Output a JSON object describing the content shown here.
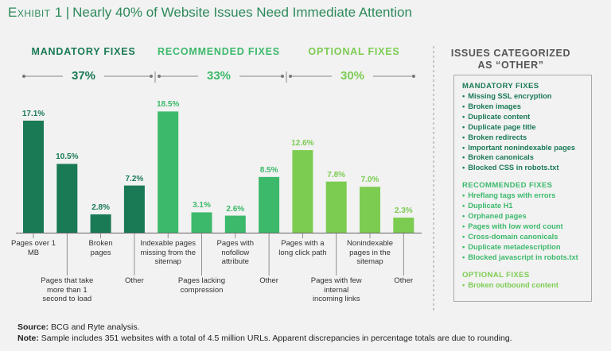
{
  "title": {
    "exhibit": "Exhibit 1",
    "text": "Nearly 40% of Website Issues Need Immediate Attention"
  },
  "colors": {
    "mandatory": "#1a7a55",
    "recommended": "#3cb96b",
    "optional": "#7ccc52",
    "axis": "#666666"
  },
  "groups": [
    {
      "name": "MANDATORY FIXES",
      "share": "37%"
    },
    {
      "name": "RECOMMENDED FIXES",
      "share": "33%"
    },
    {
      "name": "OPTIONAL FIXES",
      "share": "30%"
    }
  ],
  "chart_data": {
    "type": "bar",
    "title": "Nearly 40% of Website Issues Need Immediate Attention",
    "ylim": [
      0,
      20
    ],
    "categories": [
      "Pages over 1 MB",
      "Pages that take more than 1 second to load",
      "Broken pages",
      "Other",
      "Indexable pages missing from the sitemap",
      "Pages lacking compression",
      "Pages with nofollow attribute",
      "Other",
      "Pages with a long click path",
      "Pages with few internal incoming links",
      "Nonindexable pages in the sitemap",
      "Other"
    ],
    "values": [
      17.1,
      10.5,
      2.8,
      7.2,
      18.5,
      3.1,
      2.6,
      8.5,
      12.6,
      7.8,
      7.0,
      2.3
    ],
    "value_labels": [
      "17.1%",
      "10.5%",
      "2.8%",
      "7.2%",
      "18.5%",
      "3.1%",
      "2.6%",
      "8.5%",
      "12.6%",
      "7.8%",
      "7.0%",
      "2.3%"
    ],
    "group_of_bar": [
      0,
      0,
      0,
      0,
      1,
      1,
      1,
      1,
      2,
      2,
      2,
      2
    ],
    "group_totals": [
      37,
      33,
      30
    ]
  },
  "sidebar": {
    "title_line1": "ISSUES CATEGORIZED",
    "title_line2": "AS “OTHER”",
    "mandatory_head": "MANDATORY FIXES",
    "mandatory_items": [
      "Missing SSL encryption",
      "Broken images",
      "Duplicate content",
      "Duplicate page title",
      "Broken redirects",
      "Important nonindexable pages",
      "Broken canonicals",
      "Blocked CSS in robots.txt"
    ],
    "recommended_head": "RECOMMENDED FIXES",
    "recommended_items": [
      "Hreflang tags with errors",
      "Duplicate H1",
      "Orphaned pages",
      "Pages with low word count",
      "Cross-domain canonicals",
      "Duplicate metadescription",
      "Blocked javascript in robots.txt"
    ],
    "optional_head": "OPTIONAL FIXES",
    "optional_items": [
      "Broken outbound content"
    ]
  },
  "footer": {
    "source_label": "Source:",
    "source_text": "BCG and Ryte analysis.",
    "note_label": "Note:",
    "note_text": "Sample includes 351 websites with a total of 4.5 million URLs. Apparent discrepancies in percentage totals are due to rounding."
  }
}
